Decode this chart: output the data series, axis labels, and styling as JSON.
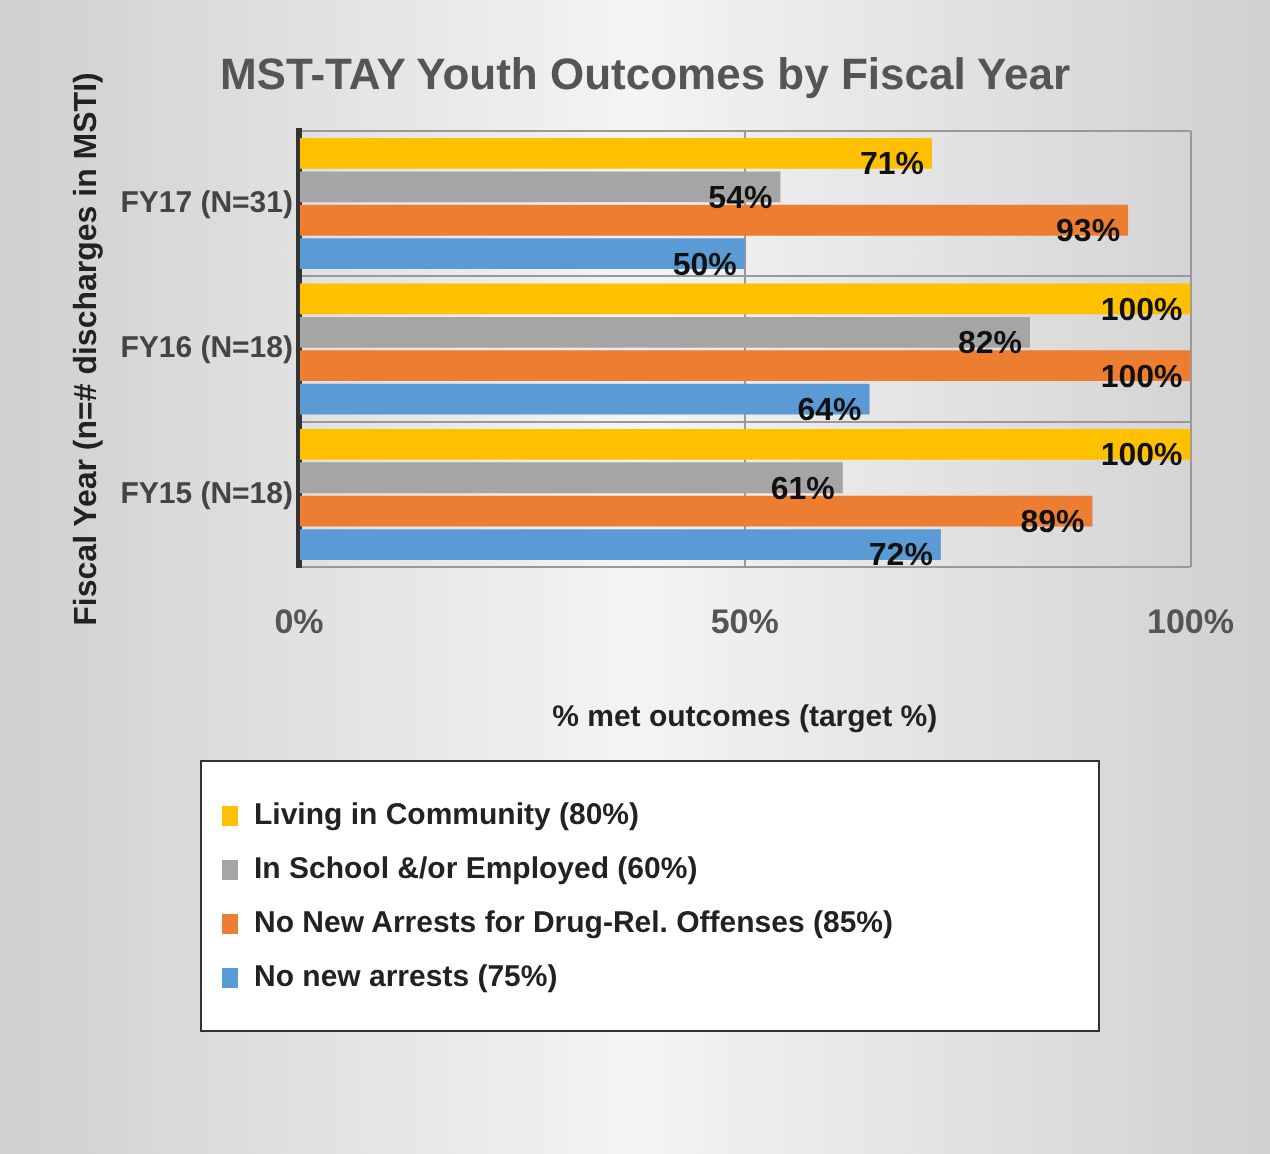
{
  "chart_data": {
    "type": "bar",
    "orientation": "horizontal",
    "title": "MST-TAY Youth Outcomes by Fiscal Year",
    "xlabel": "% met outcomes (target %)",
    "ylabel": "Fiscal Year (n=# discharges in MSTI)",
    "categories": [
      "FY17 (N=31)",
      "FY16 (N=18)",
      "FY15 (N=18)"
    ],
    "series": [
      {
        "name": "Living in Community (80%)",
        "color": "#ffc000",
        "values": [
          71,
          100,
          100
        ],
        "value_labels": [
          "71%",
          "100%",
          "100%"
        ]
      },
      {
        "name": "In School &/or Employed (60%)",
        "color": "#a5a5a5",
        "values": [
          54,
          82,
          61
        ],
        "value_labels": [
          "54%",
          "82%",
          "61%"
        ]
      },
      {
        "name": "No New Arrests for Drug-Rel. Offenses (85%)",
        "color": "#ed7d31",
        "values": [
          93,
          100,
          89
        ],
        "value_labels": [
          "93%",
          "100%",
          "89%"
        ]
      },
      {
        "name": "No new arrests (75%)",
        "color": "#5b9bd5",
        "values": [
          50,
          64,
          72
        ],
        "value_labels": [
          "50%",
          "64%",
          "72%"
        ]
      }
    ],
    "xlim": [
      0,
      100
    ],
    "xticks": [
      {
        "value": 0,
        "label": "0%"
      },
      {
        "value": 50,
        "label": "50%"
      },
      {
        "value": 100,
        "label": "100%"
      }
    ],
    "grid": true,
    "legend": "bottom"
  }
}
